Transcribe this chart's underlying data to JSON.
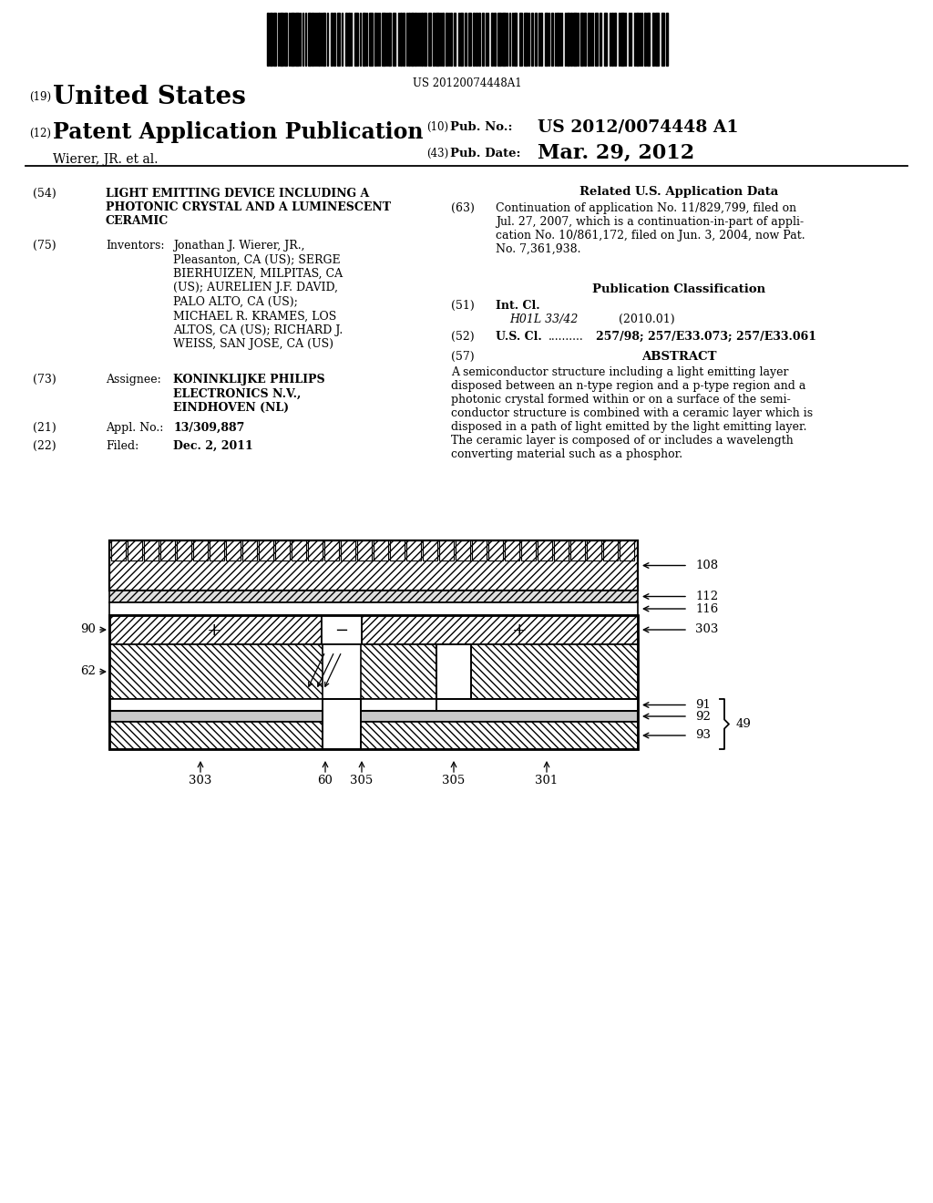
{
  "bg_color": "#ffffff",
  "barcode_text": "US 20120074448A1",
  "pub_no": "US 2012/0074448 A1",
  "author_line": "Wierer, JR. et al.",
  "pub_date": "Mar. 29, 2012",
  "field54_text": "LIGHT EMITTING DEVICE INCLUDING A\nPHOTONIC CRYSTAL AND A LUMINESCENT\nCERAMIC",
  "field75_text": "Jonathan J. Wierer, JR.,\nPleasanton, CA (US); SERGE\nBIERHUIZEN, MILPITAS, CA\n(US); AURELIEN J.F. DAVID,\nPALO ALTO, CA (US);\nMICHAEL R. KRAMES, LOS\nALTOS, CA (US); RICHARD J.\nWEISS, SAN JOSE, CA (US)",
  "field73_text": "KONINKLIJKE PHILIPS\nELECTRONICS N.V.,\nEINDHOVEN (NL)",
  "field21_text": "13/309,887",
  "field22_text": "Dec. 2, 2011",
  "related_title": "Related U.S. Application Data",
  "field63_text": "Continuation of application No. 11/829,799, filed on\nJul. 27, 2007, which is a continuation-in-part of appli-\ncation No. 10/861,172, filed on Jun. 3, 2004, now Pat.\nNo. 7,361,938.",
  "pub_class_title": "Publication Classification",
  "field51_class": "H01L 33/42",
  "field51_year": "(2010.01)",
  "field52_text": "257/98; 257/E33.073; 257/E33.061",
  "abstract_text": "A semiconductor structure including a light emitting layer\ndisposed between an n-type region and a p-type region and a\nphotonic crystal formed within or on a surface of the semi-\nconductor structure is combined with a ceramic layer which is\ndisposed in a path of light emitted by the light emitting layer.\nThe ceramic layer is composed of or includes a wavelength\nconverting material such as a phosphor.",
  "label_108": "108",
  "label_112": "112",
  "label_116": "116",
  "label_90": "90",
  "label_62": "62",
  "label_303a": "303",
  "label_91": "91",
  "label_92": "92",
  "label_93": "93",
  "label_49": "49",
  "label_303b": "303",
  "label_60": "60",
  "label_305a": "305",
  "label_305b": "305",
  "label_301": "301"
}
